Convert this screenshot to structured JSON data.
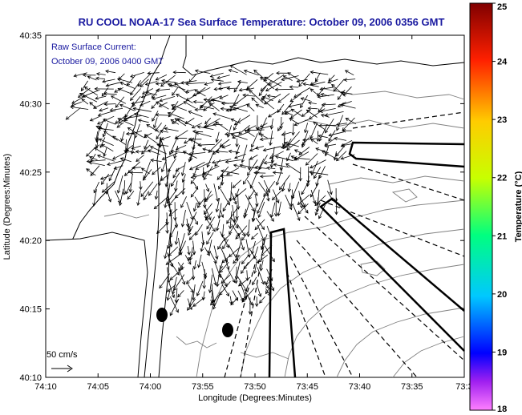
{
  "title": "RU COOL  NOAA-17  Sea Surface Temperature:  October 09, 2006 0356 GMT",
  "annotation": {
    "line1": "Raw Surface Current:",
    "line2": "October 09, 2006 0400 GMT"
  },
  "scale_label": "50 cm/s",
  "axes": {
    "xlabel": "Longitude (Degrees:Minutes)",
    "ylabel": "Latitude (Degrees:Minutes)",
    "x_ticks": [
      "74:10",
      "74:05",
      "74:00",
      "73:55",
      "73:50",
      "73:45",
      "73:40",
      "73:35",
      "73:3"
    ],
    "y_ticks": [
      "40:35",
      "40:30",
      "40:25",
      "40:20",
      "40:15",
      "40:10"
    ]
  },
  "colorbar": {
    "label": "Temperature (°C)",
    "ticks": [
      "25",
      "24",
      "23",
      "22",
      "21",
      "20",
      "19",
      "18"
    ],
    "min": 18,
    "max": 25
  },
  "map_data": {
    "lon_range_minutes_west": [
      70,
      30
    ],
    "lat_range_minutes_north": [
      10,
      35
    ],
    "ocean_color": "#ffffff",
    "land_outline_color": "#000000",
    "contour_color": "#808080",
    "vector_color": "#000000",
    "buoys": [
      "buoy-1",
      "buoy-2"
    ]
  }
}
